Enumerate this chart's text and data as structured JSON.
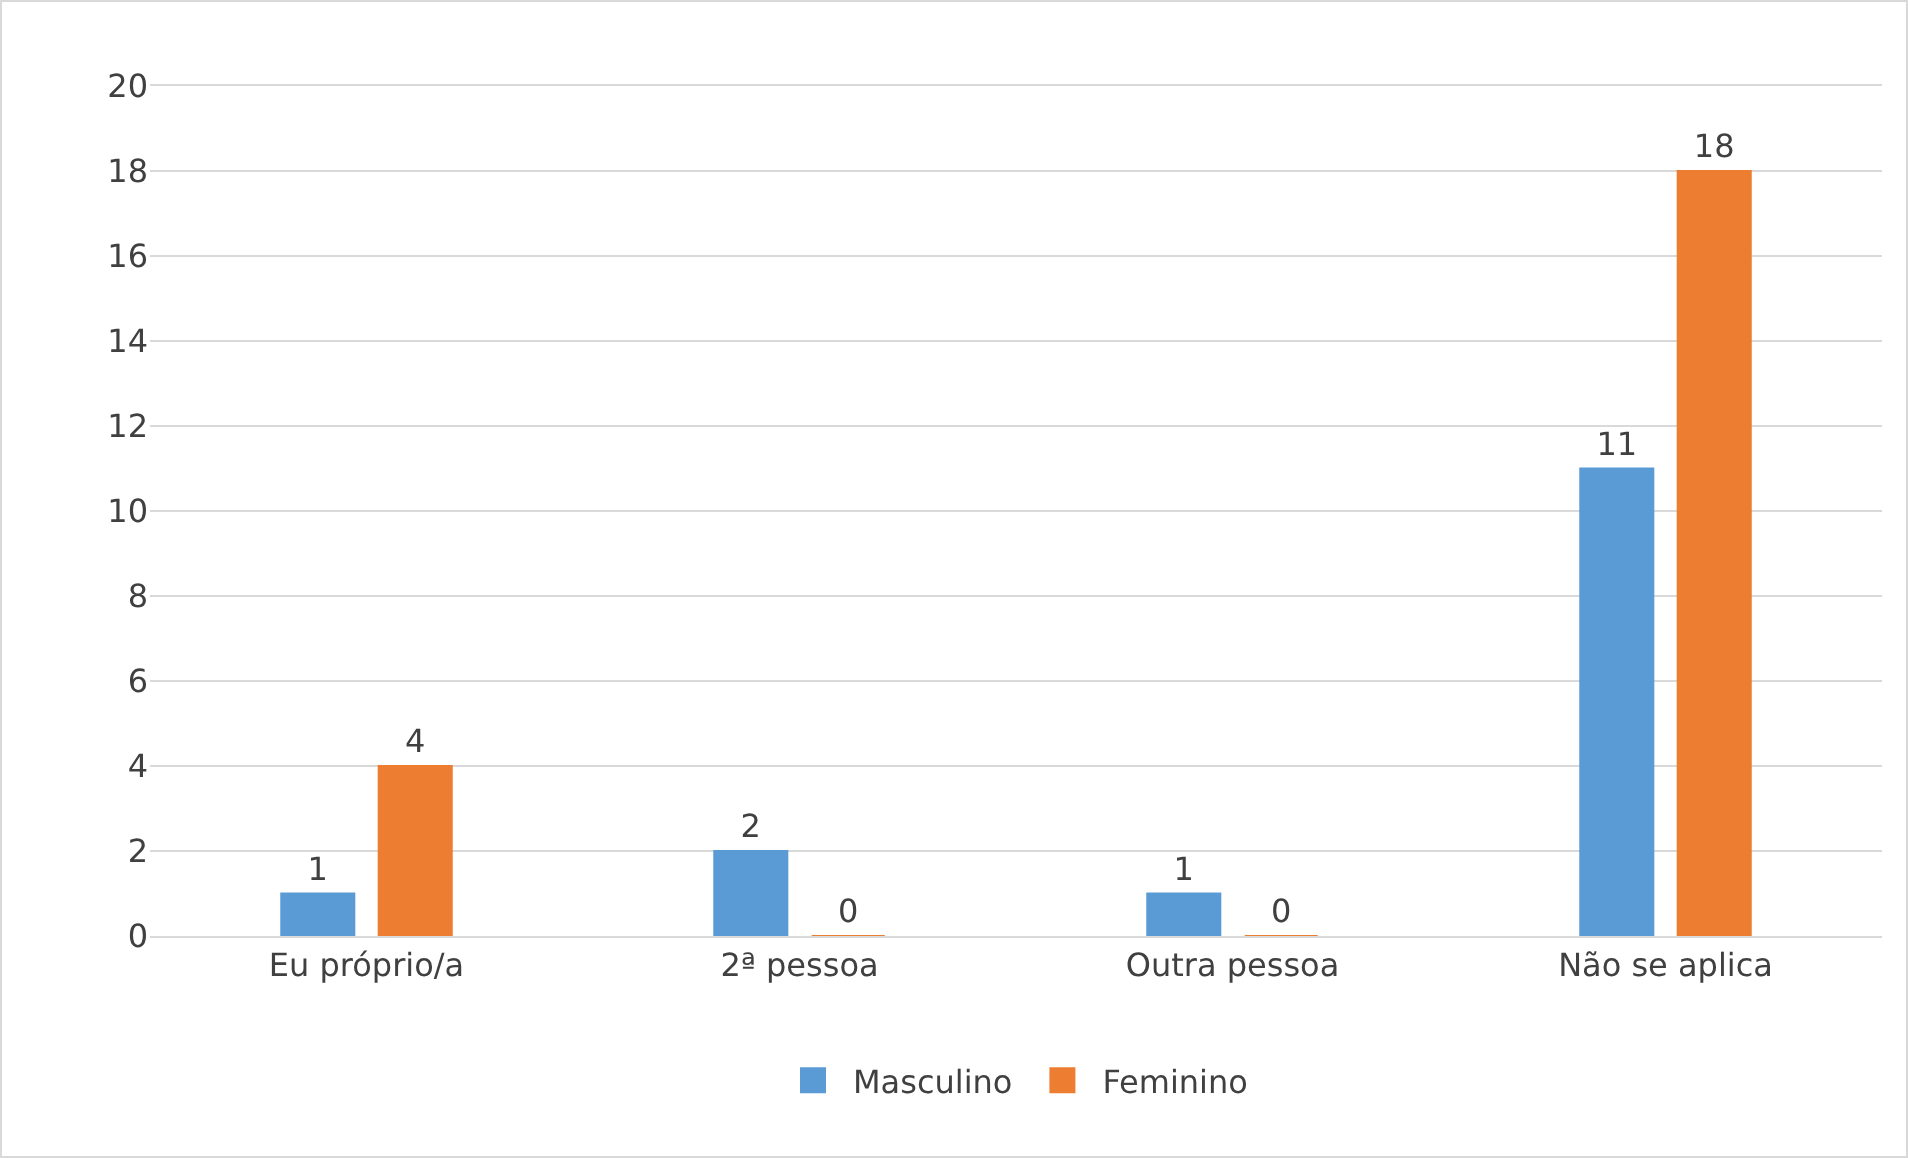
{
  "chart_data": {
    "type": "bar",
    "categories": [
      "Eu próprio/a",
      "2ª pessoa",
      "Outra pessoa",
      "Não se aplica"
    ],
    "series": [
      {
        "name": "Masculino",
        "color": "#5b9bd5",
        "values": [
          1,
          2,
          1,
          11
        ]
      },
      {
        "name": "Feminino",
        "color": "#ed7d31",
        "values": [
          4,
          0,
          0,
          18
        ]
      }
    ],
    "ylim": [
      0,
      20
    ],
    "yticks": [
      0,
      2,
      4,
      6,
      8,
      10,
      12,
      14,
      16,
      18,
      20
    ],
    "grid": "y",
    "legend": "bottom",
    "data_labels": true
  }
}
